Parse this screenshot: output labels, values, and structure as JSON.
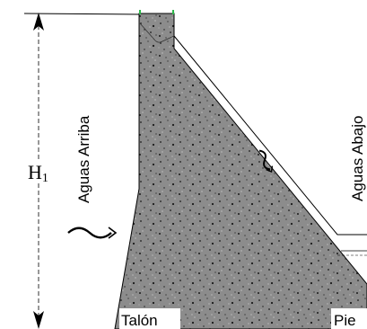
{
  "labels": {
    "height": "H",
    "height_subscript": "1",
    "upstream": "Aguas Arriba",
    "downstream": "Aguas Abajo",
    "heel": "Talón",
    "toe": "Pie"
  },
  "colors": {
    "concrete": "#8c8c8c",
    "aggregate": "#1a1a1a",
    "line": "#000000",
    "crest_marker": "#2db84a"
  },
  "icons": {
    "upstream_water": "wave-arrow-icon",
    "downstream_water": "wave-arrow-icon"
  }
}
